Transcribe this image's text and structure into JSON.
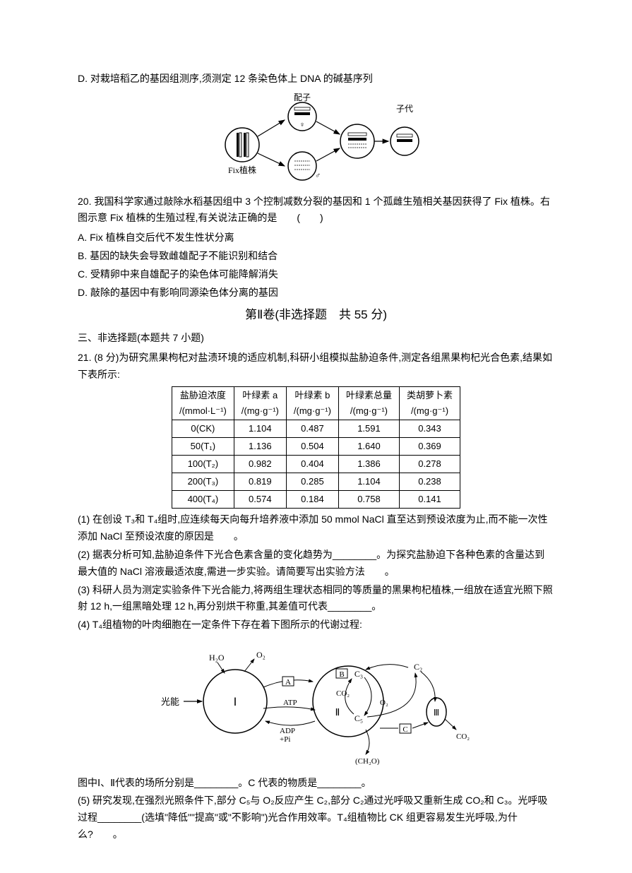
{
  "q19_optD": "D. 对栽培稻乙的基因组测序,须测定 12 条染色体上 DNA 的碱基序列",
  "fig1": {
    "labels": {
      "fix_plant": "Fix植株",
      "gamete": "配子",
      "offspring": "子代",
      "female_symbol": "♀",
      "male_symbol": "♂"
    }
  },
  "q20": {
    "stem": "20. 我国科学家通过敲除水稻基因组中 3 个控制减数分裂的基因和 1 个孤雌生殖相关基因获得了 Fix 植株。右图示意 Fix 植株的生殖过程,有关说法正确的是　　(　　)",
    "A": "A. Fix 植株自交后代不发生性状分离",
    "B": "B. 基因的缺失会导致雌雄配子不能识别和结合",
    "C": "C. 受精卵中来自雄配子的染色体可能降解消失",
    "D": "D. 敲除的基因中有影响同源染色体分离的基因"
  },
  "section2_header": "第Ⅱ卷(非选择题　共 55 分)",
  "subsection3": "三、非选择题(本题共 7 小题)",
  "q21": {
    "stem": "21. (8 分)为研究黑果枸杞对盐渍环境的适应机制,科研小组模拟盐胁迫条件,测定各组黑果枸杞光合色素,结果如下表所示:",
    "table": {
      "headers": [
        "盐胁迫浓度\n/(mmol·L⁻¹)",
        "叶绿素 a\n/(mg·g⁻¹)",
        "叶绿素 b\n/(mg·g⁻¹)",
        "叶绿素总量\n/(mg·g⁻¹)",
        "类胡萝卜素\n/(mg·g⁻¹)"
      ],
      "rows": [
        [
          "0(CK)",
          "1.104",
          "0.487",
          "1.591",
          "0.343"
        ],
        [
          "50(T₁)",
          "1.136",
          "0.504",
          "1.640",
          "0.369"
        ],
        [
          "100(T₂)",
          "0.982",
          "0.404",
          "1.386",
          "0.278"
        ],
        [
          "200(T₃)",
          "0.819",
          "0.285",
          "1.104",
          "0.238"
        ],
        [
          "400(T₄)",
          "0.574",
          "0.184",
          "0.758",
          "0.141"
        ]
      ]
    },
    "sub1": "(1) 在创设 T₃和 T₄组时,应连续每天向每升培养液中添加 50 mmol NaCl 直至达到预设浓度为止,而不能一次性添加 NaCl 至预设浓度的原因是　　。",
    "sub2": "(2) 据表分析可知,盐胁迫条件下光合色素含量的变化趋势为________。为探究盐胁迫下各种色素的含量达到最大值的 NaCl 溶液最适浓度,需进一步实验。请简要写出实验方法　　。",
    "sub3": "(3) 科研人员为测定实验条件下光合能力,将两组生理状态相同的等质量的黑果枸杞植株,一组放在适宜光照下照射 12 h,一组黑暗处理 12 h,再分别烘干称重,其差值可代表________。",
    "sub4_intro": "(4) T₄组植物的叶肉细胞在一定条件下存在着下图所示的代谢过程:",
    "sub4_post": "图中Ⅰ、Ⅱ代表的场所分别是________。C 代表的物质是________。",
    "sub5": "(5) 研究发现,在强烈光照条件下,部分 C₅与 O₂反应产生 C₂,部分 C₂通过光呼吸又重新生成 CO₂和 C₃。光呼吸过程________(选填\"降低\"\"提高\"或\"不影响\")光合作用效率。T₄组植物比 CK 组更容易发生光呼吸,为什么?　　。"
  },
  "fig2": {
    "labels": {
      "light": "光能",
      "h2o": "H₂O",
      "o2": "O₂",
      "atp": "ATP",
      "adp_pi": "ADP\n+Pi",
      "co2": "CO₂",
      "c3": "C₃",
      "c5": "C₅",
      "c2": "C₂",
      "ch2o": "(CH₂O)",
      "I": "Ⅰ",
      "II": "Ⅱ",
      "III": "Ⅲ",
      "A": "A",
      "B": "B",
      "C": "C"
    }
  }
}
